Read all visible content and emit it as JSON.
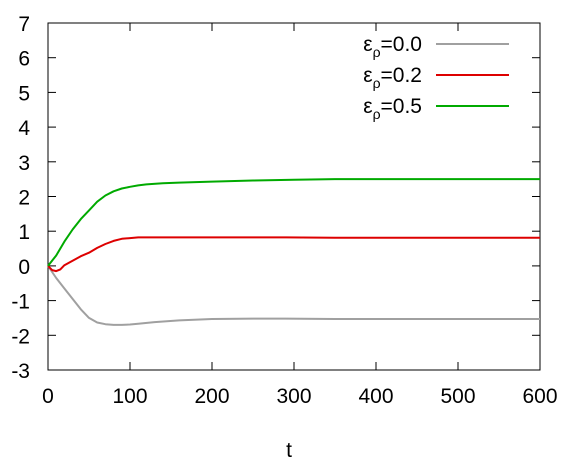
{
  "chart_data": {
    "type": "line",
    "title": "",
    "xlabel": "t",
    "ylabel": "",
    "xlim": [
      0,
      600
    ],
    "ylim": [
      -3,
      7
    ],
    "xticks": [
      0,
      100,
      200,
      300,
      400,
      500,
      600
    ],
    "yticks": [
      -3,
      -2,
      -1,
      0,
      1,
      2,
      3,
      4,
      5,
      6,
      7
    ],
    "grid": false,
    "legend_position": "top-right",
    "series": [
      {
        "name": "ε_ρ=0.0",
        "label_main": "ε",
        "label_sub": "ρ",
        "label_rest": "=0.0",
        "color": "#a0a0a0",
        "x": [
          0,
          10,
          20,
          30,
          40,
          50,
          60,
          70,
          80,
          90,
          100,
          110,
          130,
          160,
          200,
          250,
          290,
          350,
          400,
          500,
          600
        ],
        "y": [
          0,
          -0.35,
          -0.65,
          -0.95,
          -1.25,
          -1.5,
          -1.63,
          -1.68,
          -1.7,
          -1.7,
          -1.69,
          -1.67,
          -1.62,
          -1.57,
          -1.53,
          -1.52,
          -1.52,
          -1.53,
          -1.53,
          -1.53,
          -1.53
        ]
      },
      {
        "name": "ε_ρ=0.2",
        "label_main": "ε",
        "label_sub": "ρ",
        "label_rest": "=0.2",
        "color": "#dd0000",
        "x": [
          0,
          5,
          10,
          15,
          20,
          30,
          40,
          50,
          60,
          70,
          80,
          90,
          100,
          110,
          150,
          200,
          290,
          350,
          400,
          500,
          600
        ],
        "y": [
          0,
          -0.12,
          -0.15,
          -0.1,
          0.02,
          0.15,
          0.28,
          0.38,
          0.52,
          0.63,
          0.72,
          0.78,
          0.8,
          0.82,
          0.82,
          0.82,
          0.82,
          0.81,
          0.81,
          0.81,
          0.81
        ]
      },
      {
        "name": "ε_ρ=0.5",
        "label_main": "ε",
        "label_sub": "ρ",
        "label_rest": "=0.5",
        "color": "#00aa00",
        "x": [
          0,
          10,
          20,
          30,
          40,
          50,
          60,
          70,
          80,
          90,
          100,
          110,
          120,
          140,
          160,
          200,
          250,
          300,
          350,
          400,
          500,
          600
        ],
        "y": [
          0,
          0.3,
          0.7,
          1.05,
          1.35,
          1.6,
          1.85,
          2.03,
          2.15,
          2.23,
          2.28,
          2.32,
          2.35,
          2.38,
          2.4,
          2.43,
          2.46,
          2.48,
          2.5,
          2.5,
          2.5,
          2.5
        ]
      }
    ]
  }
}
